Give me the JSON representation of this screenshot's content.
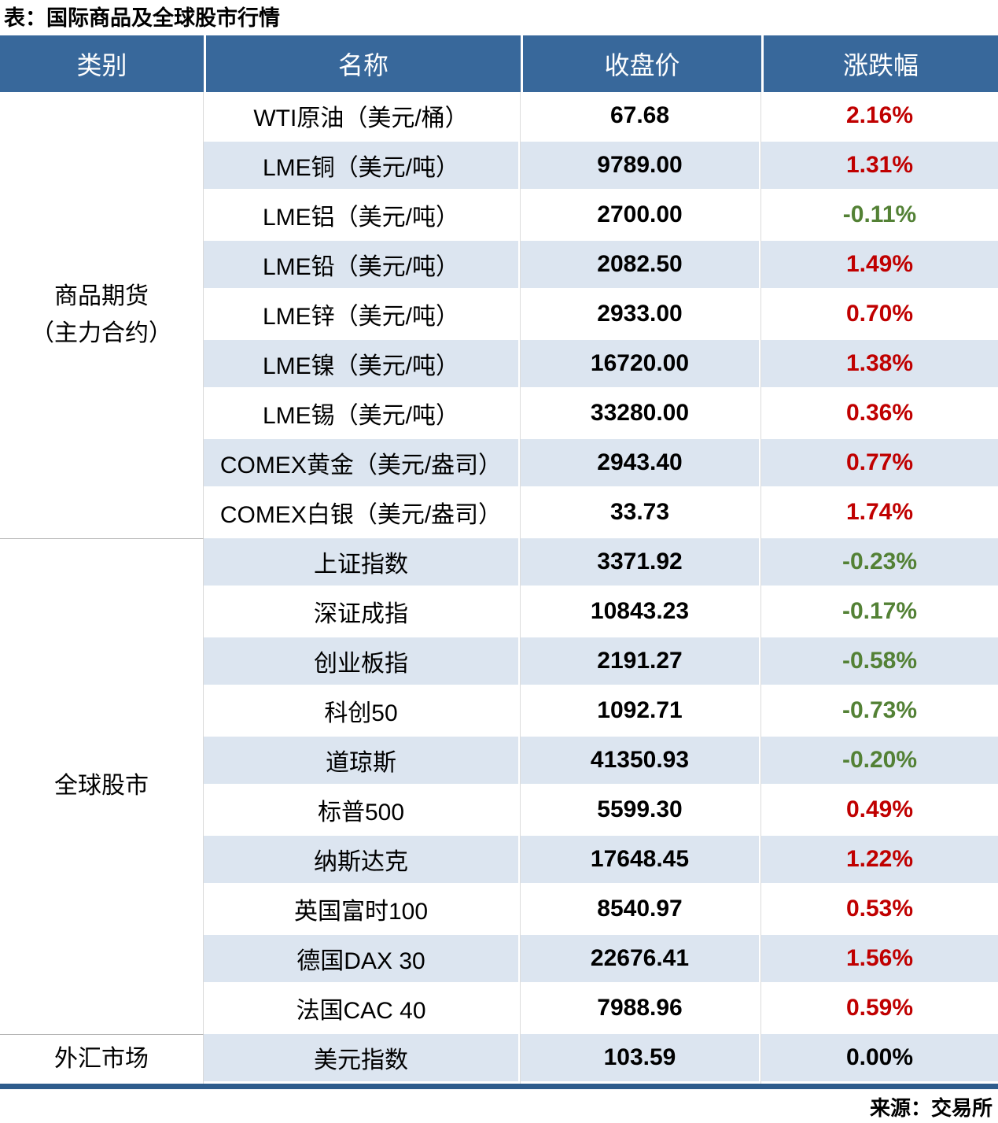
{
  "title": "表：国际商品及全球股市行情",
  "source": "来源：交易所",
  "colors": {
    "up": "#c00000",
    "down": "#538135",
    "flat": "#000000",
    "header_bg": "#38689b",
    "header_text": "#ffffff",
    "stripe_bg": "#dce5f0",
    "bottom_border": "#2e5c8c",
    "section_line": "#b3b3b3",
    "category_line": "#d9d9d9",
    "column_line": "#dcdcdc"
  },
  "chart_data": {
    "type": "table",
    "title": "表：国际商品及全球股市行情",
    "source": "来源：交易所",
    "columns": [
      "类别",
      "名称",
      "收盘价",
      "涨跌幅"
    ],
    "sections": [
      {
        "category": "商品期货\n（主力合约）",
        "rows": [
          {
            "name": "WTI原油（美元/桶）",
            "close": "67.68",
            "change": "2.16%"
          },
          {
            "name": "LME铜（美元/吨）",
            "close": "9789.00",
            "change": "1.31%"
          },
          {
            "name": "LME铝（美元/吨）",
            "close": "2700.00",
            "change": "-0.11%"
          },
          {
            "name": "LME铅（美元/吨）",
            "close": "2082.50",
            "change": "1.49%"
          },
          {
            "name": "LME锌（美元/吨）",
            "close": "2933.00",
            "change": "0.70%"
          },
          {
            "name": "LME镍（美元/吨）",
            "close": "16720.00",
            "change": "1.38%"
          },
          {
            "name": "LME锡（美元/吨）",
            "close": "33280.00",
            "change": "0.36%"
          },
          {
            "name": "COMEX黄金（美元/盎司）",
            "close": "2943.40",
            "change": "0.77%"
          },
          {
            "name": "COMEX白银（美元/盎司）",
            "close": "33.73",
            "change": "1.74%"
          }
        ]
      },
      {
        "category": "全球股市",
        "rows": [
          {
            "name": "上证指数",
            "close": "3371.92",
            "change": "-0.23%"
          },
          {
            "name": "深证成指",
            "close": "10843.23",
            "change": "-0.17%"
          },
          {
            "name": "创业板指",
            "close": "2191.27",
            "change": "-0.58%"
          },
          {
            "name": "科创50",
            "close": "1092.71",
            "change": "-0.73%"
          },
          {
            "name": "道琼斯",
            "close": "41350.93",
            "change": "-0.20%"
          },
          {
            "name": "标普500",
            "close": "5599.30",
            "change": "0.49%"
          },
          {
            "name": "纳斯达克",
            "close": "17648.45",
            "change": "1.22%"
          },
          {
            "name": "英国富时100",
            "close": "8540.97",
            "change": "0.53%"
          },
          {
            "name": "德国DAX 30",
            "close": "22676.41",
            "change": "1.56%"
          },
          {
            "name": "法国CAC 40",
            "close": "7988.96",
            "change": "0.59%"
          }
        ]
      },
      {
        "category": "外汇市场",
        "rows": [
          {
            "name": "美元指数",
            "close": "103.59",
            "change": "0.00%"
          }
        ]
      }
    ]
  }
}
